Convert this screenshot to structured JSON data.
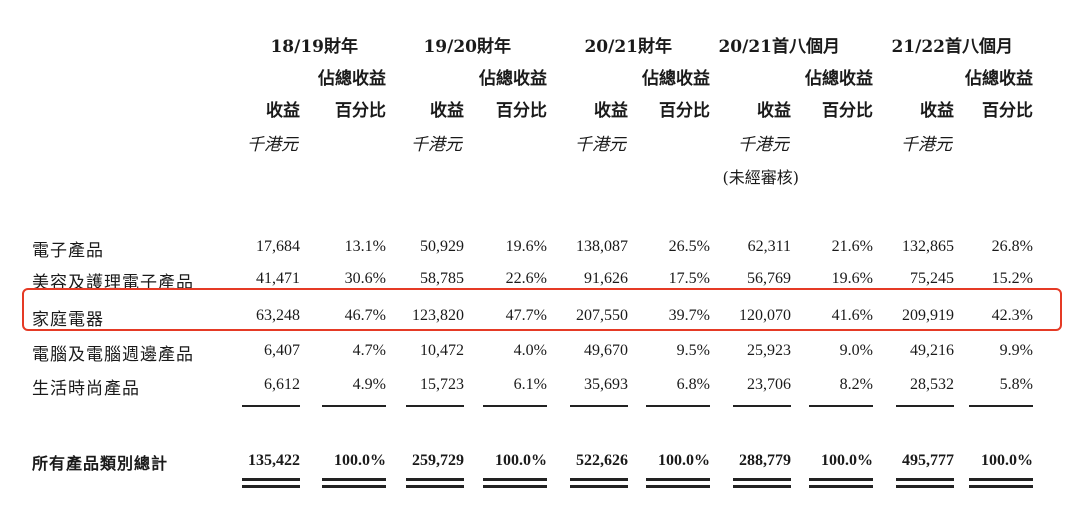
{
  "periods": [
    {
      "title": "18/19財年",
      "rev": "收益",
      "pct_line1": "佔總收益",
      "pct_line2": "百分比",
      "unit": "千港元",
      "note": ""
    },
    {
      "title": "19/20財年",
      "rev": "收益",
      "pct_line1": "佔總收益",
      "pct_line2": "百分比",
      "unit": "千港元",
      "note": ""
    },
    {
      "title": "20/21財年",
      "rev": "收益",
      "pct_line1": "佔總收益",
      "pct_line2": "百分比",
      "unit": "千港元",
      "note": ""
    },
    {
      "title": "20/21首八個月",
      "rev": "收益",
      "pct_line1": "佔總收益",
      "pct_line2": "百分比",
      "unit": "千港元",
      "note": "(未經審核)"
    },
    {
      "title": "21/22首八個月",
      "rev": "收益",
      "pct_line1": "佔總收益",
      "pct_line2": "百分比",
      "unit": "千港元",
      "note": ""
    }
  ],
  "rows": [
    {
      "label": "電子產品",
      "cells": [
        "17,684",
        "13.1%",
        "50,929",
        "19.6%",
        "138,087",
        "26.5%",
        "62,311",
        "21.6%",
        "132,865",
        "26.8%"
      ]
    },
    {
      "label": "美容及護理電子產品",
      "cells": [
        "41,471",
        "30.6%",
        "58,785",
        "22.6%",
        "91,626",
        "17.5%",
        "56,769",
        "19.6%",
        "75,245",
        "15.2%"
      ]
    },
    {
      "label": "家庭電器",
      "cells": [
        "63,248",
        "46.7%",
        "123,820",
        "47.7%",
        "207,550",
        "39.7%",
        "120,070",
        "41.6%",
        "209,919",
        "42.3%"
      ]
    },
    {
      "label": "電腦及電腦週邊產品",
      "cells": [
        "6,407",
        "4.7%",
        "10,472",
        "4.0%",
        "49,670",
        "9.5%",
        "25,923",
        "9.0%",
        "49,216",
        "9.9%"
      ]
    },
    {
      "label": "生活時尚產品",
      "cells": [
        "6,612",
        "4.9%",
        "15,723",
        "6.1%",
        "35,693",
        "6.8%",
        "23,706",
        "8.2%",
        "28,532",
        "5.8%"
      ]
    }
  ],
  "total": {
    "label": "所有產品類別總計",
    "cells": [
      "135,422",
      "100.0%",
      "259,729",
      "100.0%",
      "522,626",
      "100.0%",
      "288,779",
      "100.0%",
      "495,777",
      "100.0%"
    ]
  },
  "highlight_color": "#e53a25"
}
